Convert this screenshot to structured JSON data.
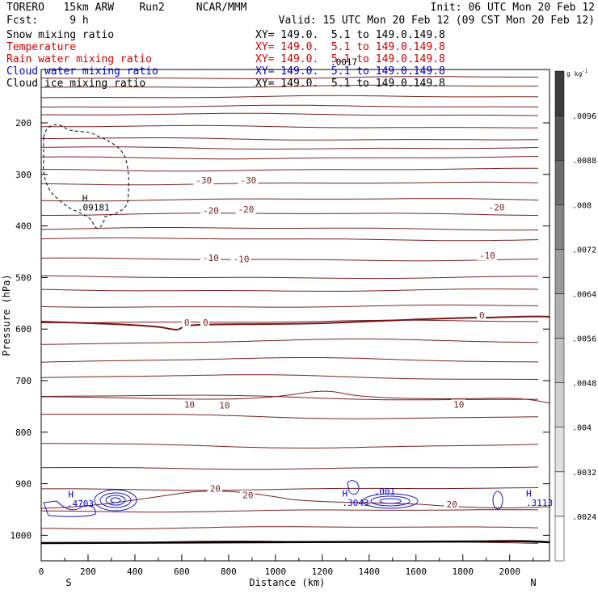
{
  "header": {
    "model": "TORERO   15km ARW    Run2     NCAR/MMM",
    "init": "Init: 06 UTC Mon 20 Feb 12",
    "fcst": "Fcst:     9 h",
    "valid": "Valid: 15 UTC Mon 20 Feb 12 (09 CST Mon 20 Feb 12)"
  },
  "fields": [
    {
      "name": "Snow mixing ratio",
      "xy": "XY= 149.0.  5.1 to 149.0.149.8",
      "color": "#000000"
    },
    {
      "name": "Temperature",
      "xy": "XY= 149.0.  5.1 to 149.0.149.8",
      "color": "#cc0000"
    },
    {
      "name": "Rain water mixing ratio",
      "xy": "XY= 149.0.  5.1 to 149.0.149.8",
      "color": "#cc0000"
    },
    {
      "name": "Cloud water mixing ratio",
      "xy": "XY= 149.0.  5.1 to 149.0.149.8",
      "color": "#0000cc"
    },
    {
      "name": "Cloud ice mixing ratio",
      "xy": "XY= 149.0.  5.1 to 149.0.149.8",
      "color": "#000000"
    }
  ],
  "chart_data": {
    "type": "contour",
    "xlabel": "Distance (km)",
    "ylabel": "Pressure (hPa)",
    "xlim": [
      0,
      2170
    ],
    "ylim": [
      1050,
      100
    ],
    "x_ticks": [
      0,
      200,
      400,
      600,
      800,
      1000,
      1200,
      1400,
      1600,
      1800,
      2000
    ],
    "y_ticks": [
      200,
      300,
      400,
      500,
      600,
      700,
      800,
      900,
      1000
    ],
    "x_end_labels": {
      "left": "S",
      "right": "N"
    },
    "colorbar": {
      "unit": "g kg",
      "unit_sup": "-1",
      "ticks": [
        ".0096",
        ".0088",
        ".008",
        ".0072",
        ".0064",
        ".0056",
        ".0048",
        ".004",
        ".0032",
        ".0024"
      ],
      "levels": [
        0.0024,
        0.0032,
        0.004,
        0.0048,
        0.0056,
        0.0064,
        0.0072,
        0.008,
        0.0088,
        0.0096
      ],
      "colors": [
        "#ffffff",
        "#f0f0f0",
        "#e0e0e0",
        "#d0d0d0",
        "#c0c0c0",
        "#b0b0b0",
        "#9a9a9a",
        "#848484",
        "#6c6c6c",
        "#545454",
        "#3c3c3c"
      ]
    },
    "temperature_labels": [
      {
        "text": "-30",
        "x": 660,
        "p": 311
      },
      {
        "text": "-30",
        "x": 850,
        "p": 311
      },
      {
        "text": "-20",
        "x": 690,
        "p": 370
      },
      {
        "text": "-20",
        "x": 840,
        "p": 368
      },
      {
        "text": "-20",
        "x": 1910,
        "p": 364
      },
      {
        "text": "-10",
        "x": 690,
        "p": 462
      },
      {
        "text": "-10",
        "x": 820,
        "p": 464
      },
      {
        "text": "-10",
        "x": 1870,
        "p": 457
      },
      {
        "text": "0",
        "x": 610,
        "p": 587
      },
      {
        "text": "0",
        "x": 690,
        "p": 587
      },
      {
        "text": "0",
        "x": 1870,
        "p": 573
      },
      {
        "text": "10",
        "x": 610,
        "p": 746
      },
      {
        "text": "10",
        "x": 760,
        "p": 748
      },
      {
        "text": "10",
        "x": 1760,
        "p": 746
      },
      {
        "text": "20",
        "x": 720,
        "p": 909
      },
      {
        "text": "20",
        "x": 860,
        "p": 922
      },
      {
        "text": "20",
        "x": 1730,
        "p": 940
      }
    ],
    "extrema_labels": [
      {
        "text": "H",
        "x": 175,
        "p": 346,
        "color": "#000000"
      },
      {
        "text": ".09181",
        "x": 155,
        "p": 364,
        "color": "#000000"
      },
      {
        "text": "H",
        "x": 115,
        "p": 920,
        "color": "#0000cc"
      },
      {
        "text": ".4703",
        "x": 110,
        "p": 938,
        "color": "#0000cc"
      },
      {
        "text": "H",
        "x": 1285,
        "p": 919,
        "color": "#0000cc"
      },
      {
        "text": ".3043",
        "x": 1285,
        "p": 937,
        "color": "#0000cc"
      },
      {
        "text": ".001",
        "x": 1420,
        "p": 915,
        "color": "#0000cc"
      },
      {
        "text": "H",
        "x": 2070,
        "p": 919,
        "color": "#0000cc"
      },
      {
        "text": ".3113",
        "x": 2070,
        "p": 937,
        "color": "#0000cc"
      },
      {
        "text": ".0017",
        "x": 1235,
        "p": 82,
        "color": "#000000"
      }
    ]
  }
}
